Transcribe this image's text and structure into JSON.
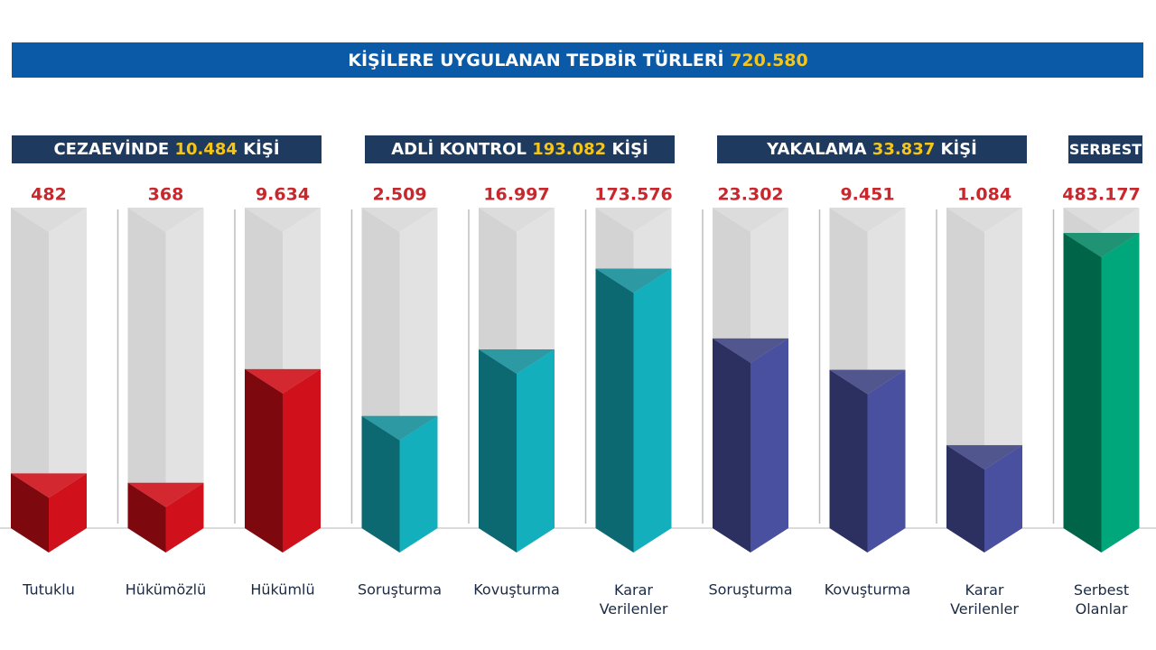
{
  "chart_data": {
    "type": "bar",
    "title": "KİŞİLERE UYGULANAN TEDBİR TÜRLERİ",
    "total": {
      "value": 720580,
      "label": "720.580"
    },
    "log_scale": true,
    "groups": [
      {
        "name": "CEZAEVİNDE",
        "total": {
          "value": 10484,
          "label": "10.484"
        },
        "unit": "KİŞİ",
        "color": "#d0101a",
        "categories": [
          "Tutuklu",
          "Hükümözlü",
          "Hükümlü"
        ],
        "values": [
          482,
          368,
          9634
        ],
        "value_labels": [
          "482",
          "368",
          "9.634"
        ]
      },
      {
        "name": "ADLİ KONTROL",
        "total": {
          "value": 193082,
          "label": "193.082"
        },
        "unit": "KİŞİ",
        "color": "#14afbd",
        "categories": [
          "Soruşturma",
          "Kovuşturma",
          "Karar Verilenler"
        ],
        "values": [
          2509,
          16997,
          173576
        ],
        "value_labels": [
          "2.509",
          "16.997",
          "173.576"
        ]
      },
      {
        "name": "YAKALAMA",
        "total": {
          "value": 33837,
          "label": "33.837"
        },
        "unit": "KİŞİ",
        "color": "#4a50a0",
        "categories": [
          "Soruşturma",
          "Kovuşturma",
          "Karar Verilenler"
        ],
        "values": [
          23302,
          9451,
          1084
        ],
        "value_labels": [
          "23.302",
          "9.451",
          "1.084"
        ]
      },
      {
        "name": "SERBEST",
        "color": "#00a77a",
        "categories": [
          "Serbest Olanlar"
        ],
        "values": [
          483177
        ],
        "value_labels": [
          "483.177"
        ]
      }
    ]
  }
}
